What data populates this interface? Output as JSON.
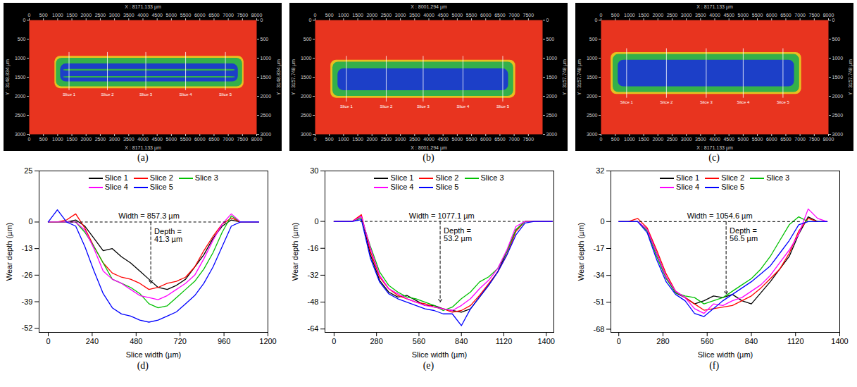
{
  "chart_data": [
    {
      "type": "surface_map",
      "panel_label": "(a)",
      "x_label": "X : 8171.133 µm",
      "y_label": "Y : 3148.834 µm",
      "color": "#e8341f",
      "xlim": [
        0,
        8000
      ],
      "xticks": [
        0,
        500,
        1000,
        1500,
        2000,
        2500,
        3000,
        3500,
        4000,
        4500,
        5000,
        5500,
        6000,
        6500,
        7000,
        7500,
        8000
      ],
      "ylim": [
        0,
        3000
      ],
      "yticks": [
        0,
        500,
        1000,
        1500,
        2000,
        2500,
        3000
      ],
      "regions": [
        {
          "x": [
            900,
            7550
          ],
          "y": [
            950,
            1800
          ],
          "color": "#e8c020"
        },
        {
          "x": [
            950,
            7500
          ],
          "y": [
            1000,
            1750
          ],
          "color": "#34b04a"
        },
        {
          "x": [
            1100,
            7350
          ],
          "y": [
            1150,
            1620
          ],
          "color": "#1c3fc8"
        },
        {
          "x": [
            1200,
            7250
          ],
          "y": [
            1290,
            1340
          ],
          "color": "#34b04a"
        },
        {
          "x": [
            1200,
            7250
          ],
          "y": [
            1480,
            1520
          ],
          "color": "#34b04a"
        }
      ],
      "slices": [
        {
          "name": "Slice 1",
          "x": 1400
        },
        {
          "name": "Slice 2",
          "x": 2750
        },
        {
          "name": "Slice 3",
          "x": 4100
        },
        {
          "name": "Slice 4",
          "x": 5500
        },
        {
          "name": "Slice 5",
          "x": 6900
        }
      ],
      "slice_y": [
        850,
        1850
      ]
    },
    {
      "type": "surface_map",
      "panel_label": "(b)",
      "x_label": "X : 8001.294 µm",
      "y_label": "Y : 3157.748 µm",
      "color": "#e8341f",
      "xlim": [
        0,
        8000
      ],
      "xticks": [
        0,
        500,
        1000,
        1500,
        2000,
        2500,
        3000,
        3500,
        4000,
        4500,
        5000,
        5500,
        6000,
        6500,
        7000,
        7500
      ],
      "ylim": [
        0,
        3000
      ],
      "yticks": [
        0,
        500,
        1000,
        1500,
        2000,
        2500,
        3000
      ],
      "regions": [
        {
          "x": [
            550,
            7050
          ],
          "y": [
            1050,
            2050
          ],
          "color": "#e8c020"
        },
        {
          "x": [
            620,
            6980
          ],
          "y": [
            1100,
            2000
          ],
          "color": "#34b04a"
        },
        {
          "x": [
            800,
            6800
          ],
          "y": [
            1280,
            1850
          ],
          "color": "#1c3fc8"
        }
      ],
      "slices": [
        {
          "name": "Slice 1",
          "x": 1100
        },
        {
          "name": "Slice 2",
          "x": 2500
        },
        {
          "name": "Slice 3",
          "x": 3800
        },
        {
          "name": "Slice 4",
          "x": 5200
        },
        {
          "name": "Slice 5",
          "x": 6600
        }
      ],
      "slice_y": [
        950,
        2150
      ]
    },
    {
      "type": "surface_map",
      "panel_label": "(c)",
      "x_label": "X : 8171.133 µm",
      "y_label": "Y : 3157.748 µm",
      "color": "#e8341f",
      "xlim": [
        0,
        8000
      ],
      "xticks": [
        0,
        500,
        1000,
        1500,
        2000,
        2500,
        3000,
        3500,
        4000,
        4500,
        5000,
        5500,
        6000,
        6500,
        7000,
        7500,
        8000
      ],
      "ylim": [
        0,
        3000
      ],
      "yticks": [
        0,
        500,
        1000,
        1500,
        2000,
        2500,
        3000
      ],
      "regions": [
        {
          "x": [
            350,
            7050
          ],
          "y": [
            850,
            1950
          ],
          "color": "#e8c020"
        },
        {
          "x": [
            420,
            6980
          ],
          "y": [
            900,
            1900
          ],
          "color": "#34b04a"
        },
        {
          "x": [
            600,
            6800
          ],
          "y": [
            1050,
            1750
          ],
          "color": "#1c3fc8"
        }
      ],
      "slices": [
        {
          "name": "Slice 1",
          "x": 900
        },
        {
          "name": "Slice 2",
          "x": 2300
        },
        {
          "name": "Slice 3",
          "x": 3700
        },
        {
          "name": "Slice 4",
          "x": 5000
        },
        {
          "name": "Slice 5",
          "x": 6400
        }
      ],
      "slice_y": [
        750,
        2050
      ]
    },
    {
      "type": "line",
      "panel_label": "(d)",
      "x_label": "Slice width (µm)",
      "y_label": "Wear depth (µm)",
      "legend": "top",
      "xlim": [
        -50,
        1200
      ],
      "xticks": [
        0,
        240,
        480,
        720,
        960,
        1200
      ],
      "ylim": [
        -54,
        25
      ],
      "yticks": [
        25,
        0,
        -13,
        -26,
        -39,
        -52
      ],
      "x": [
        0,
        50,
        100,
        150,
        200,
        250,
        300,
        350,
        400,
        450,
        500,
        550,
        600,
        650,
        700,
        750,
        800,
        850,
        900,
        950,
        1000,
        1050,
        1100,
        1150
      ],
      "series": [
        {
          "name": "Slice 1",
          "color": "#000000",
          "values": [
            0,
            0,
            0,
            1,
            -2,
            -8,
            -14,
            -13,
            -17,
            -20,
            -24,
            -28,
            -32,
            -33,
            -31,
            -28,
            -22,
            -16,
            -8,
            -2,
            1,
            0,
            0,
            0
          ]
        },
        {
          "name": "Slice 2",
          "color": "#ff0000",
          "values": [
            0,
            0,
            1,
            4,
            -3,
            -12,
            -20,
            -25,
            -27,
            -28,
            -30,
            -33,
            -32,
            -30,
            -29,
            -27,
            -22,
            -14,
            -7,
            -1,
            2,
            0,
            0,
            0
          ]
        },
        {
          "name": "Slice 3",
          "color": "#00c000",
          "values": [
            0,
            0,
            0,
            0,
            -5,
            -12,
            -20,
            -28,
            -30,
            -32,
            -35,
            -40,
            -42,
            -41,
            -37,
            -33,
            -29,
            -23,
            -15,
            -5,
            3,
            0,
            0,
            0
          ]
        },
        {
          "name": "Slice 4",
          "color": "#ff00ff",
          "values": [
            0,
            0,
            0,
            0,
            -4,
            -13,
            -24,
            -28,
            -30,
            -33,
            -36,
            -37,
            -38,
            -36,
            -33,
            -30,
            -26,
            -18,
            -9,
            -1,
            4,
            0,
            0,
            0
          ]
        },
        {
          "name": "Slice 5",
          "color": "#0000ff",
          "values": [
            0,
            6,
            0,
            -2,
            -12,
            -24,
            -35,
            -42,
            -45,
            -46,
            -48,
            -49,
            -48,
            -46,
            -44,
            -40,
            -36,
            -30,
            -22,
            -12,
            -2,
            0,
            0,
            0
          ]
        }
      ],
      "width_annotation": {
        "text": "Width = 857.3 µm",
        "x": [
          120,
          980
        ],
        "y": 0
      },
      "depth_annotation": {
        "text": [
          "Depth =",
          "41.3 µm"
        ],
        "x": 560,
        "y": [
          0,
          -30
        ]
      }
    },
    {
      "type": "line",
      "panel_label": "(e)",
      "x_label": "Slice width (µm)",
      "y_label": "Wear depth (µm)",
      "legend": "top",
      "xlim": [
        -60,
        1450
      ],
      "xticks": [
        0,
        280,
        560,
        840,
        1120,
        1400
      ],
      "ylim": [
        -66,
        30
      ],
      "yticks": [
        30,
        0,
        -16,
        -32,
        -48,
        -64
      ],
      "x": [
        0,
        60,
        120,
        180,
        240,
        300,
        360,
        420,
        480,
        540,
        600,
        660,
        720,
        780,
        840,
        900,
        960,
        1020,
        1080,
        1140,
        1200,
        1260,
        1320,
        1380,
        1440
      ],
      "series": [
        {
          "name": "Slice 1",
          "color": "#000000",
          "values": [
            0,
            0,
            0,
            3,
            -20,
            -35,
            -42,
            -45,
            -44,
            -47,
            -50,
            -50,
            -52,
            -53,
            -54,
            -52,
            -45,
            -38,
            -30,
            -18,
            -5,
            0,
            0,
            0,
            0
          ]
        },
        {
          "name": "Slice 2",
          "color": "#ff0000",
          "values": [
            0,
            0,
            0,
            4,
            -18,
            -33,
            -40,
            -44,
            -46,
            -48,
            -49,
            -51,
            -52,
            -54,
            -53,
            -50,
            -44,
            -37,
            -30,
            -20,
            -6,
            0,
            0,
            0,
            0
          ]
        },
        {
          "name": "Slice 3",
          "color": "#00c000",
          "values": [
            0,
            0,
            0,
            2,
            -15,
            -30,
            -38,
            -42,
            -45,
            -46,
            -48,
            -50,
            -53,
            -51,
            -46,
            -42,
            -36,
            -33,
            -28,
            -18,
            -5,
            0,
            0,
            0,
            0
          ]
        },
        {
          "name": "Slice 4",
          "color": "#ff00ff",
          "values": [
            0,
            0,
            0,
            3,
            -16,
            -32,
            -40,
            -43,
            -46,
            -48,
            -50,
            -51,
            -52,
            -53,
            -50,
            -46,
            -40,
            -35,
            -28,
            -17,
            -3,
            0,
            0,
            0,
            0
          ]
        },
        {
          "name": "Slice 5",
          "color": "#0000ff",
          "values": [
            0,
            0,
            0,
            1,
            -22,
            -36,
            -43,
            -46,
            -48,
            -50,
            -52,
            -53,
            -55,
            -55,
            -62,
            -52,
            -45,
            -38,
            -30,
            -20,
            -8,
            -1,
            0,
            0,
            0
          ]
        }
      ],
      "width_annotation": {
        "text": "Width = 1077.1 µm",
        "x": [
          170,
          1250
        ],
        "y": 0
      },
      "depth_annotation": {
        "text": [
          "Depth =",
          "53.2 µm"
        ],
        "x": 700,
        "y": [
          0,
          -48
        ]
      }
    },
    {
      "type": "line",
      "panel_label": "(f)",
      "x_label": "Slice width (µm)",
      "y_label": "Wear depth (µm)",
      "legend": "top",
      "xlim": [
        -50,
        1400
      ],
      "xticks": [
        0,
        280,
        560,
        840,
        1120,
        1400
      ],
      "ylim": [
        -70,
        32
      ],
      "yticks": [
        32,
        0,
        -17,
        -34,
        -51,
        -68
      ],
      "x": [
        0,
        60,
        120,
        180,
        240,
        300,
        360,
        420,
        480,
        540,
        600,
        660,
        720,
        780,
        840,
        900,
        960,
        1020,
        1080,
        1140,
        1200,
        1260,
        1320
      ],
      "series": [
        {
          "name": "Slice 1",
          "color": "#000000",
          "values": [
            0,
            0,
            0,
            -5,
            -20,
            -35,
            -45,
            -48,
            -52,
            -50,
            -47,
            -48,
            -46,
            -50,
            -52,
            -45,
            -38,
            -30,
            -22,
            -8,
            3,
            0,
            0
          ]
        },
        {
          "name": "Slice 2",
          "color": "#ff0000",
          "values": [
            0,
            0,
            2,
            -4,
            -18,
            -33,
            -44,
            -48,
            -52,
            -56,
            -55,
            -54,
            -53,
            -50,
            -47,
            -42,
            -36,
            -30,
            -20,
            -6,
            2,
            0,
            0
          ]
        },
        {
          "name": "Slice 3",
          "color": "#00c000",
          "values": [
            0,
            0,
            0,
            -6,
            -22,
            -36,
            -45,
            -47,
            -48,
            -52,
            -50,
            -48,
            -44,
            -40,
            -36,
            -30,
            -22,
            -12,
            -2,
            3,
            0,
            0,
            0
          ]
        },
        {
          "name": "Slice 4",
          "color": "#ff00ff",
          "values": [
            0,
            0,
            0,
            -5,
            -20,
            -35,
            -44,
            -48,
            -55,
            -58,
            -52,
            -53,
            -50,
            -48,
            -44,
            -40,
            -34,
            -26,
            -18,
            -8,
            8,
            2,
            0
          ]
        },
        {
          "name": "Slice 5",
          "color": "#0000ff",
          "values": [
            0,
            0,
            0,
            -7,
            -24,
            -38,
            -46,
            -50,
            -58,
            -60,
            -55,
            -50,
            -46,
            -42,
            -38,
            -33,
            -28,
            -20,
            -12,
            -2,
            0,
            0,
            0
          ]
        }
      ],
      "width_annotation": {
        "text": "Width = 1054.6 µm",
        "x": [
          130,
          1150
        ],
        "y": 0
      },
      "depth_annotation": {
        "text": [
          "Depth =",
          "56.5 µm"
        ],
        "x": 680,
        "y": [
          0,
          -46
        ]
      }
    }
  ]
}
